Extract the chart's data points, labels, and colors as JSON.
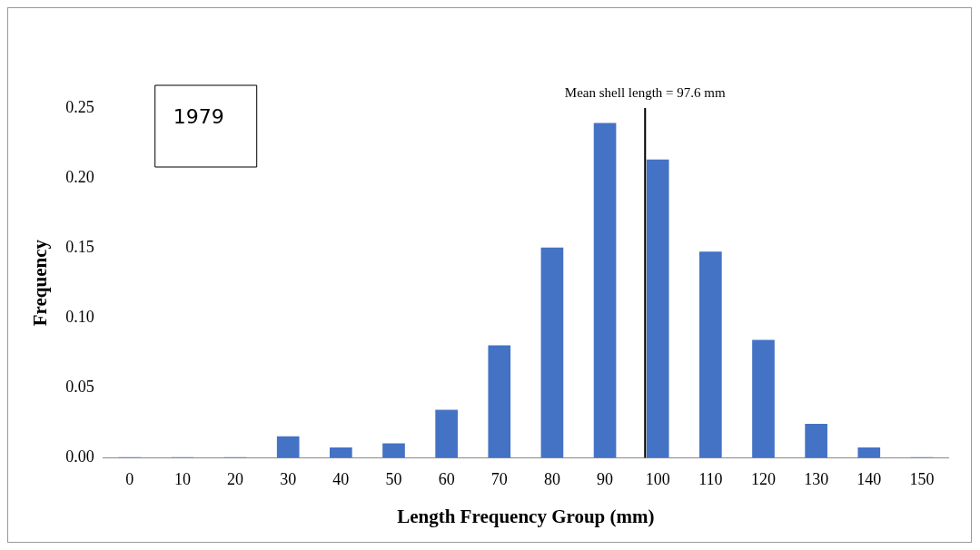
{
  "chart_data": {
    "type": "bar",
    "xlabel": "Length Frequency Group (mm)",
    "ylabel": "Frequency",
    "x": [
      0,
      10,
      20,
      30,
      40,
      50,
      60,
      70,
      80,
      90,
      100,
      110,
      120,
      130,
      140,
      150
    ],
    "values": [
      0,
      0,
      0,
      0.015,
      0.007,
      0.01,
      0.034,
      0.08,
      0.15,
      0.239,
      0.213,
      0.147,
      0.084,
      0.024,
      0.007,
      0
    ],
    "color": "#4472c4",
    "xlim": [
      -5,
      155
    ],
    "xticks": [
      0,
      10,
      20,
      30,
      40,
      50,
      60,
      70,
      80,
      90,
      100,
      110,
      120,
      130,
      140,
      150
    ],
    "ylim": [
      0,
      0.25
    ],
    "yticks": [
      {
        "value": 0,
        "label": "0.00"
      },
      {
        "value": 0.05,
        "label": "0.05"
      },
      {
        "value": 0.1,
        "label": "0.10"
      },
      {
        "value": 0.15,
        "label": "0.15"
      },
      {
        "value": 0.2,
        "label": "0.20"
      },
      {
        "value": 0.25,
        "label": "0.25"
      }
    ],
    "ref_lines": [
      {
        "axis": "x",
        "value": 97.6,
        "label": "Mean shell length = 97.6 mm",
        "color": "#000000"
      }
    ],
    "annotations": [
      "1979"
    ],
    "grid": false,
    "legend": false
  }
}
